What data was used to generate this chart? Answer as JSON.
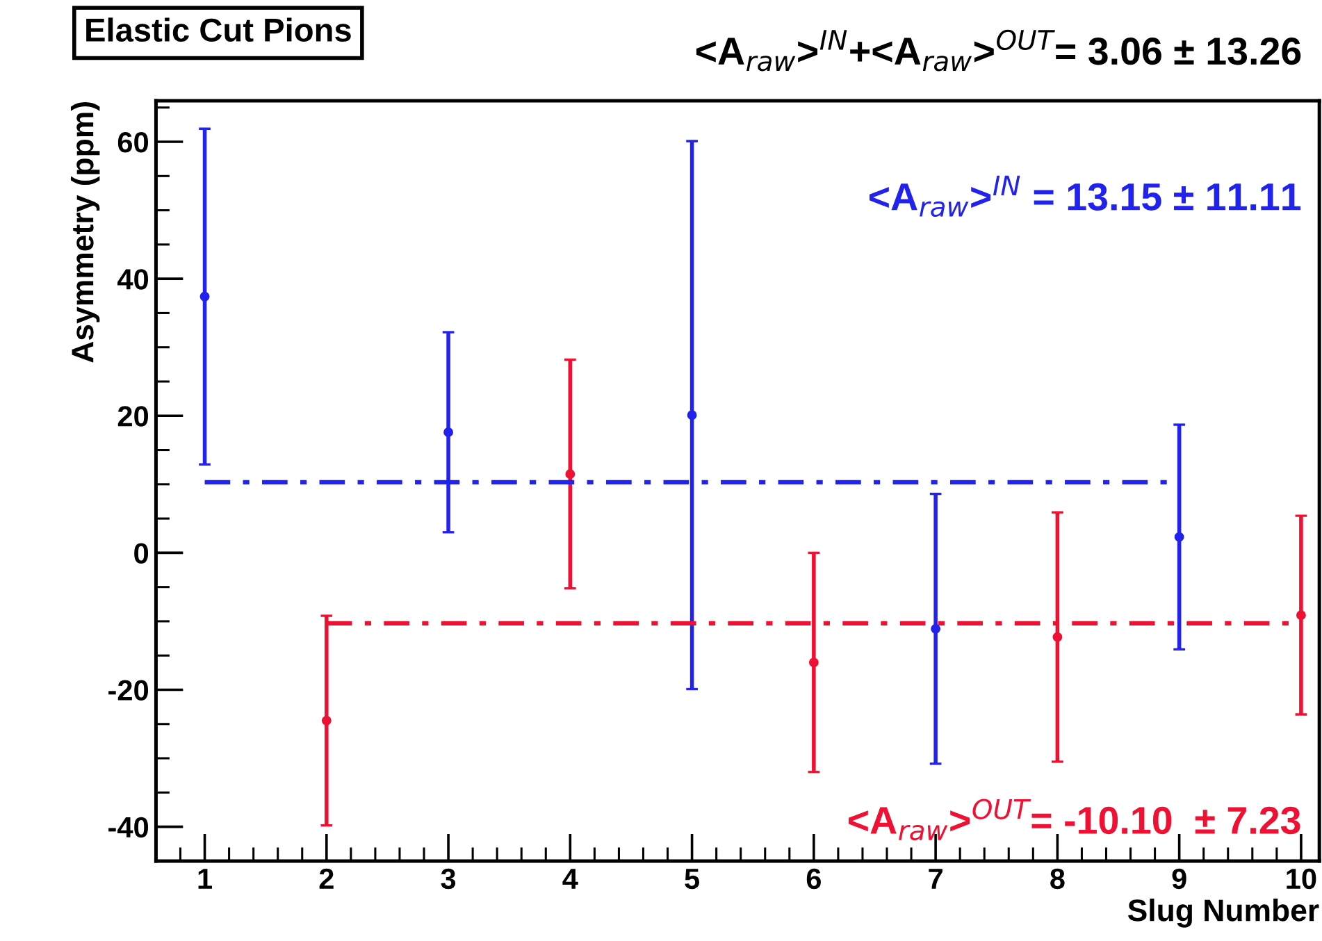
{
  "chart_data": {
    "type": "scatter",
    "title": "Elastic Cut Pions",
    "annotations": [
      "<A$_{raw}$>$^{IN}$+<A$_{raw}$>$^{OUT}$= 3.06 ± 13.26"
    ],
    "xlabel": "Slug Number",
    "ylabel": "Asymmetry (ppm)",
    "xlim": [
      0.6,
      10.15
    ],
    "ylim": [
      -45,
      66
    ],
    "xticks": [
      1,
      2,
      3,
      4,
      5,
      6,
      7,
      8,
      9,
      10
    ],
    "yticks": [
      -40,
      -20,
      0,
      20,
      40,
      60
    ],
    "marker": "circle",
    "grid": false,
    "legend": false,
    "series": [
      {
        "color": "#2222ee",
        "x": [
          1,
          3,
          5,
          7,
          9
        ],
        "values": [
          37.4,
          17.6,
          20.1,
          -11.1,
          2.3
        ],
        "errors": [
          24.5,
          14.6,
          40,
          19.7,
          16.4
        ]
      },
      {
        "color": "#ee1133",
        "x": [
          2,
          4,
          6,
          8,
          10
        ],
        "values": [
          -24.5,
          11.5,
          -16.0,
          -12.3,
          -9.1
        ],
        "errors": [
          15.3,
          16.7,
          16.0,
          18.2,
          14.5
        ]
      },
      {
        "type": "line",
        "name": "<A$_{raw}$>$^{IN}$ = 13.15 ± 11.11",
        "color": "#2222ee",
        "line_style": "dashdot",
        "marker": "none",
        "x": [
          1,
          9
        ],
        "values": [
          10.3,
          10.3
        ]
      },
      {
        "type": "line",
        "name": "<A$_{raw}$>$^{OUT}$= -10.10  ± 7.23",
        "color": "#ee1133",
        "line_style": "dashdot",
        "marker": "none",
        "x": [
          2,
          10
        ],
        "values": [
          -10.3,
          -10.3
        ]
      }
    ]
  }
}
